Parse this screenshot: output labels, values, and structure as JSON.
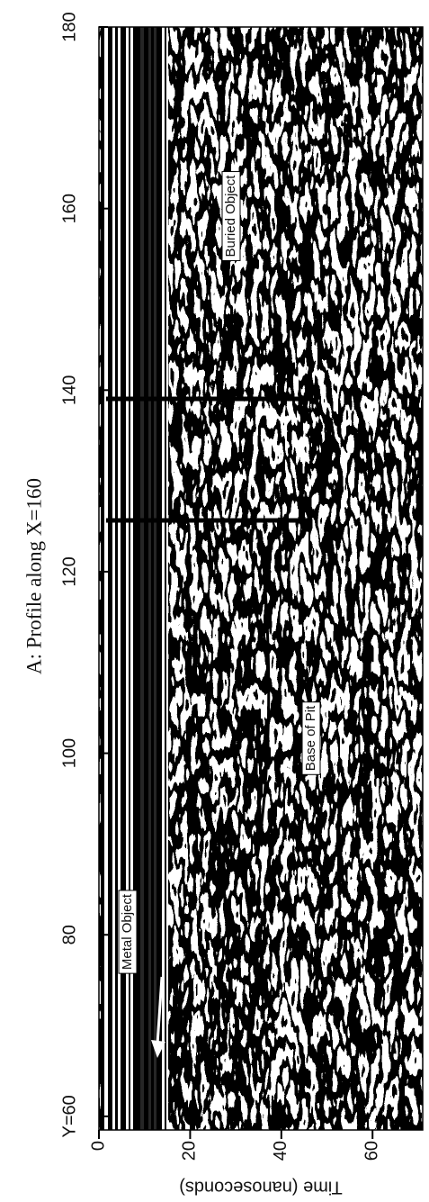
{
  "chart_data": {
    "type": "image",
    "title": "A: Profile along X=160",
    "x_label": "Time (nanoseconds)",
    "xlim": [
      0,
      71
    ],
    "xticks": [
      0,
      20,
      40,
      60
    ],
    "ylim": [
      58.5,
      180
    ],
    "yticks": [
      {
        "value": 60,
        "label": "Y=60"
      },
      80,
      100,
      120,
      140,
      160,
      180
    ],
    "annotations": [
      "Metal Object",
      "Buried Object",
      "Base of Pit"
    ]
  }
}
